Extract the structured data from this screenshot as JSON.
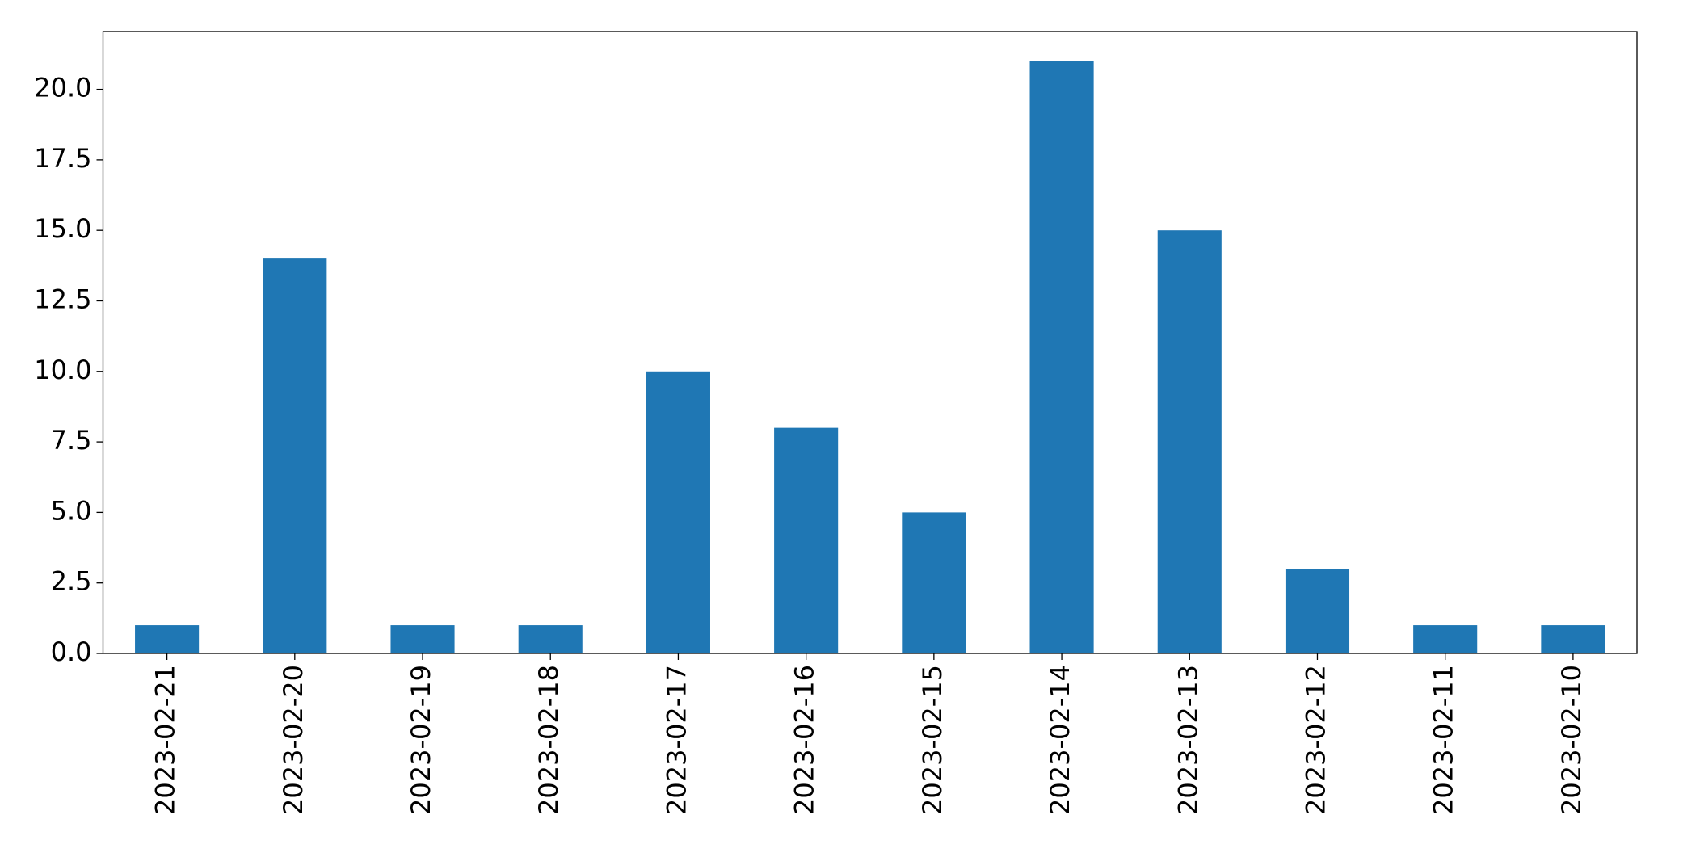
{
  "chart_data": {
    "type": "bar",
    "categories": [
      "2023-02-21",
      "2023-02-20",
      "2023-02-19",
      "2023-02-18",
      "2023-02-17",
      "2023-02-16",
      "2023-02-15",
      "2023-02-14",
      "2023-02-13",
      "2023-02-12",
      "2023-02-11",
      "2023-02-10"
    ],
    "values": [
      1,
      14,
      1,
      1,
      10,
      8,
      5,
      21,
      15,
      3,
      1,
      1
    ],
    "color": "#1f77b4",
    "ylim": [
      0,
      22.05
    ],
    "yticks": [
      {
        "value": 0,
        "label": "0.0"
      },
      2.5,
      {
        "value": 5,
        "label": "5.0"
      },
      7.5,
      {
        "value": 10,
        "label": "10.0"
      },
      12.5,
      {
        "value": 15,
        "label": "15.0"
      },
      17.5,
      {
        "value": 20,
        "label": "20.0"
      }
    ],
    "grid": false
  }
}
